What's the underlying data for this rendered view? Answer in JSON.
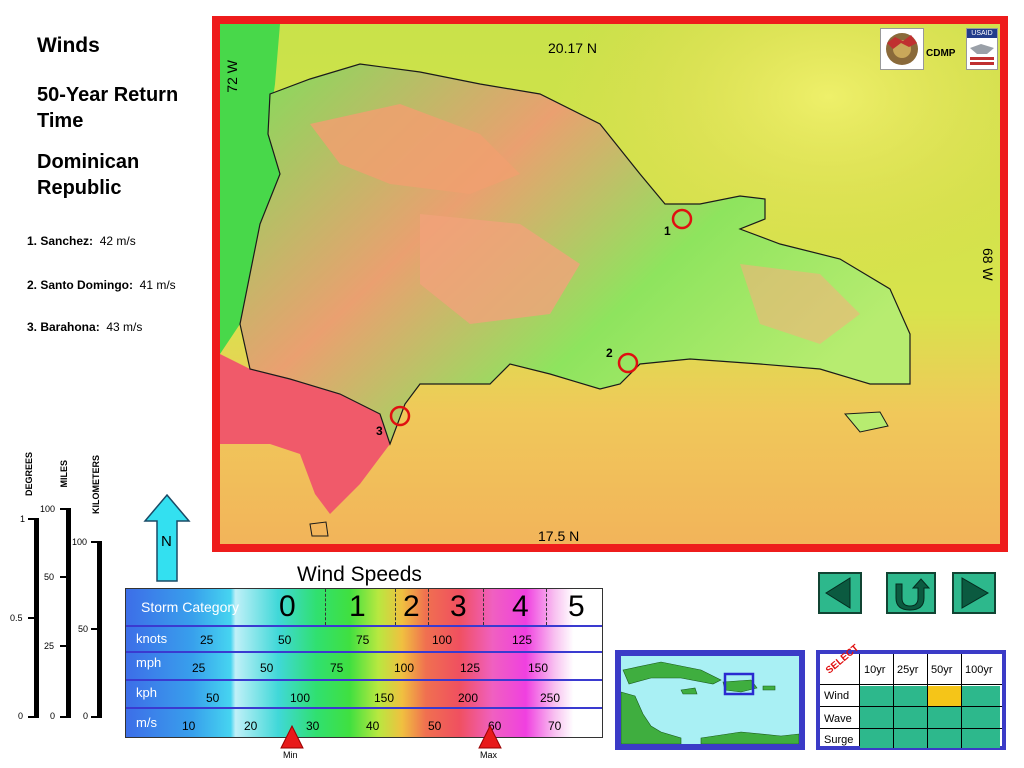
{
  "title": {
    "main": "Winds",
    "subtitle": "50-Year Return Time",
    "country": "Dominican Republic"
  },
  "sites": [
    {
      "label": "1. Sanchez:",
      "value": "42 m/s"
    },
    {
      "label": "2. Santo Domingo:",
      "value": "41 m/s"
    },
    {
      "label": "3. Barahona:",
      "value": "43 m/s"
    }
  ],
  "map": {
    "top_lat": "20.17 N",
    "bottom_lat": "17.5 N",
    "left_lon": "72 W",
    "right_lon": "68 W",
    "markers": [
      "1",
      "2",
      "3"
    ],
    "logo_text": "CDMP",
    "usaid_text": "USAID"
  },
  "scales": {
    "degrees_label": "DEGREES",
    "miles_label": "MILES",
    "km_label": "KILOMETERS",
    "degrees_ticks": [
      "1",
      "0.5",
      "0"
    ],
    "miles_ticks": [
      "100",
      "50",
      "25",
      "0"
    ],
    "km_ticks": [
      "100",
      "50",
      "0"
    ],
    "north": "N"
  },
  "legend": {
    "title": "Wind Speeds",
    "storm_label": "Storm Category",
    "categories": [
      "0",
      "1",
      "2",
      "3",
      "4",
      "5"
    ],
    "rows": [
      {
        "label": "knots",
        "ticks": [
          "25",
          "50",
          "75",
          "100",
          "125"
        ]
      },
      {
        "label": "mph",
        "ticks": [
          "25",
          "50",
          "75",
          "100",
          "125",
          "150"
        ]
      },
      {
        "label": "kph",
        "ticks": [
          "50",
          "100",
          "150",
          "200",
          "250"
        ]
      },
      {
        "label": "m/s",
        "ticks": [
          "10",
          "20",
          "30",
          "40",
          "50",
          "60",
          "70"
        ]
      }
    ],
    "min_label": "Min",
    "max_label": "Max"
  },
  "select": {
    "corner": "SELECT",
    "columns": [
      "10yr",
      "25yr",
      "50yr",
      "100yr"
    ],
    "rows": [
      "Wind",
      "Wave",
      "Surge"
    ],
    "selected": {
      "row": "Wind",
      "column": "50yr"
    },
    "cell_color": "#2db88c",
    "selected_color": "#f5c518"
  },
  "colors": {
    "frame": "#ee1c1c",
    "nav_button": "#2db88c",
    "panel_blue": "#3b3bc7"
  }
}
